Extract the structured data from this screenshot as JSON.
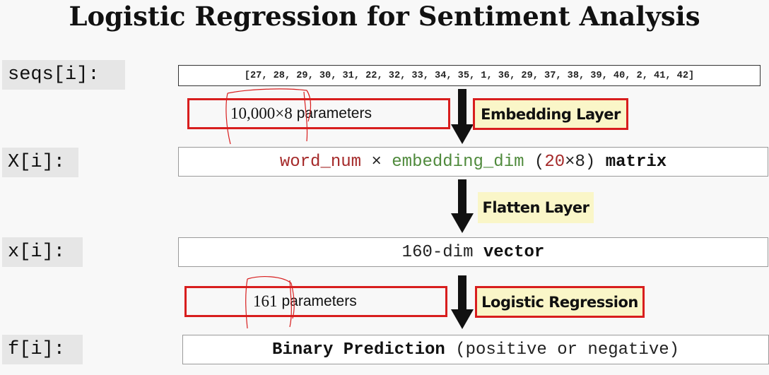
{
  "title": "Logistic Regression for Sentiment Analysis",
  "rows": {
    "seqs": {
      "label": "seqs[i]:",
      "value": "[27, 28, 29, 30, 31, 22, 32, 33, 34, 35, 1, 36, 29, 37, 38, 39, 40, 2, 41, 42]"
    },
    "X": {
      "label": "X[i]:",
      "word_num": "word_num",
      "times": "×",
      "embedding_dim": "embedding_dim",
      "shape_open": "(",
      "shape_20": "20",
      "shape_x8": "×8)",
      "matrix": "matrix"
    },
    "x": {
      "label": "x[i]:",
      "dim": "160-dim",
      "vector": "vector"
    },
    "f": {
      "label": "f[i]:",
      "prediction": "Binary Prediction",
      "note": "(positive or negative)"
    }
  },
  "layers": {
    "embedding": {
      "label": "Embedding Layer",
      "params_num": "10,000×8",
      "params_word": "parameters"
    },
    "flatten": {
      "label": "Flatten Layer"
    },
    "logistic": {
      "label": "Logistic Regression",
      "params_num": "161",
      "params_word": "parameters"
    }
  },
  "colors": {
    "highlight_red": "#d81e1e",
    "word_num": "#a52a2a",
    "embedding_dim": "#4f8a3c",
    "layer_label_bg": "#faf6c8",
    "row_label_bg": "#e6e6e6"
  }
}
